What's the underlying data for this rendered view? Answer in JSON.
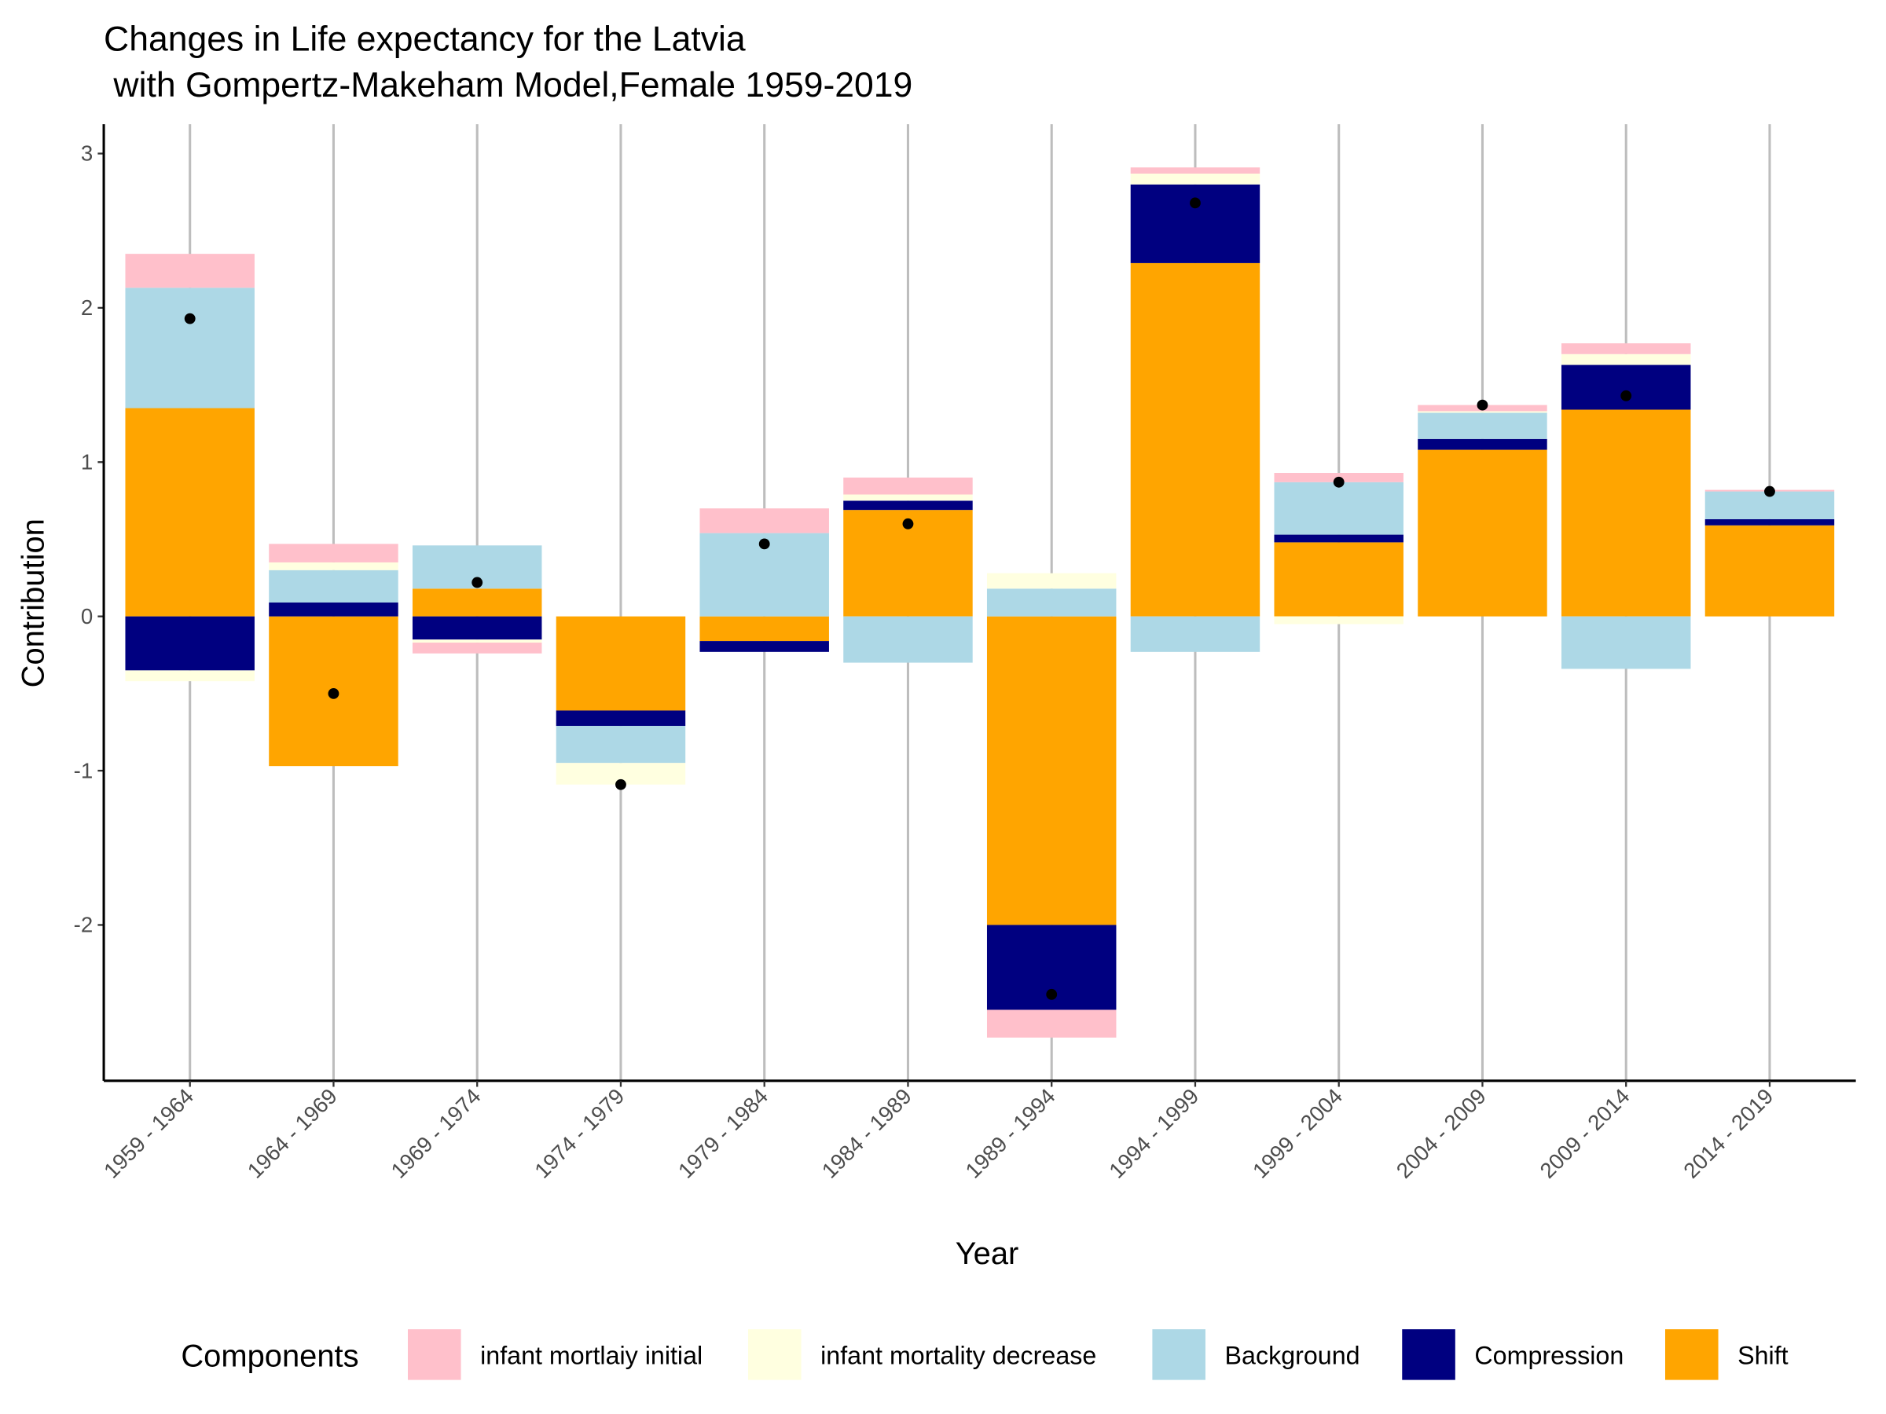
{
  "chart_data": {
    "type": "bar",
    "title": [
      "Changes in Life expectancy for the Latvia",
      " with Gompertz-Makeham Model,Female 1959-2019"
    ],
    "x_label": "Year",
    "y_label": "Contribution",
    "legend_title": "Components",
    "legend_position": "bottom",
    "categories": [
      "1959 - 1964",
      "1964 - 1969",
      "1969 - 1974",
      "1974 - 1979",
      "1979 - 1984",
      "1984 - 1989",
      "1989 - 1994",
      "1994 - 1999",
      "1999 - 2004",
      "2004 - 2009",
      "2009 - 2014",
      "2014 - 2019"
    ],
    "series": [
      {
        "name": "infant mortlaiy initial",
        "color": "#FFC0CB",
        "values": [
          0.22,
          0.12,
          -0.07,
          0,
          0.16,
          0.11,
          -0.18,
          0.04,
          0.06,
          0.04,
          0.07,
          0.01
        ]
      },
      {
        "name": "infant mortality decrease",
        "color": "#FFFFE0",
        "values": [
          -0.07,
          0.05,
          -0.02,
          -0.14,
          0,
          0.04,
          0.1,
          0.07,
          -0.05,
          0.01,
          0.07,
          0
        ]
      },
      {
        "name": "Background",
        "color": "#ADD8E6",
        "values": [
          0.78,
          0.21,
          0.28,
          -0.24,
          0.54,
          -0.3,
          0.18,
          -0.23,
          0.34,
          0.17,
          -0.34,
          0.18
        ]
      },
      {
        "name": "Compression",
        "color": "#000080",
        "values": [
          -0.35,
          0.09,
          -0.15,
          -0.1,
          -0.07,
          0.06,
          -0.55,
          0.51,
          0.05,
          0.07,
          0.29,
          0.04
        ]
      },
      {
        "name": "Shift",
        "color": "#FFA500",
        "values": [
          1.35,
          -0.97,
          0.18,
          -0.61,
          -0.16,
          0.69,
          -2.0,
          2.29,
          0.48,
          1.08,
          1.34,
          0.59
        ]
      }
    ],
    "totals": [
      1.93,
      -0.5,
      0.22,
      -1.09,
      0.47,
      0.6,
      -2.45,
      2.68,
      0.87,
      1.37,
      1.43,
      0.81
    ],
    "ylim": [
      -3.01,
      3.19
    ],
    "yticks": [
      -2,
      -1,
      0,
      1,
      2,
      3
    ],
    "grid": "vertical"
  }
}
